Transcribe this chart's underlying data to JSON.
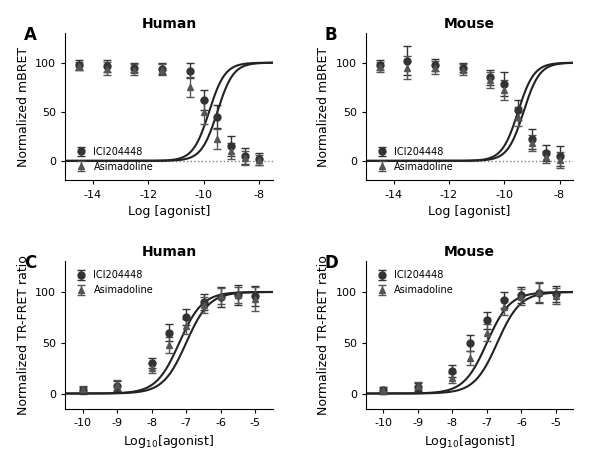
{
  "panel_A": {
    "title": "Human",
    "label": "A",
    "xlabel": "Log [agonist]",
    "ylabel": "Normalized mBRET",
    "xlim": [
      -15,
      -7.5
    ],
    "ylim": [
      -20,
      130
    ],
    "xticks": [
      -14,
      -12,
      -10,
      -8
    ],
    "yticks": [
      0,
      50,
      100
    ],
    "dotted_y": 0,
    "ICI_x": [
      -14.5,
      -13.5,
      -12.5,
      -11.5,
      -10.5,
      -10.0,
      -9.5,
      -9.0,
      -8.5,
      -8.0
    ],
    "ICI_y": [
      98,
      97,
      95,
      94,
      92,
      62,
      45,
      15,
      5,
      2
    ],
    "ICI_err": [
      5,
      6,
      5,
      6,
      8,
      10,
      12,
      10,
      8,
      6
    ],
    "Asim_x": [
      -14.5,
      -13.5,
      -12.5,
      -11.5,
      -10.5,
      -10.0,
      -9.5,
      -9.0,
      -8.5,
      -8.0
    ],
    "Asim_y": [
      97,
      94,
      93,
      93,
      75,
      50,
      22,
      10,
      3,
      1
    ],
    "Asim_err": [
      4,
      7,
      6,
      6,
      10,
      12,
      10,
      8,
      7,
      5
    ],
    "ICI_ec50": -9.5,
    "Asim_ec50": -9.8
  },
  "panel_B": {
    "title": "Mouse",
    "label": "B",
    "xlabel": "Log [agonist]",
    "ylabel": "Normalized mBRET",
    "xlim": [
      -15,
      -7.5
    ],
    "ylim": [
      -20,
      130
    ],
    "xticks": [
      -14,
      -12,
      -10,
      -8
    ],
    "yticks": [
      0,
      50,
      100
    ],
    "dotted_y": 0,
    "ICI_x": [
      -14.5,
      -13.5,
      -12.5,
      -11.5,
      -10.5,
      -10.0,
      -9.5,
      -9.0,
      -8.5,
      -8.0
    ],
    "ICI_y": [
      98,
      102,
      98,
      95,
      85,
      78,
      52,
      22,
      8,
      5
    ],
    "ICI_err": [
      5,
      15,
      6,
      5,
      8,
      12,
      10,
      10,
      8,
      10
    ],
    "Asim_x": [
      -14.5,
      -13.5,
      -12.5,
      -11.5,
      -10.5,
      -10.0,
      -9.5,
      -9.0,
      -8.5,
      -8.0
    ],
    "Asim_y": [
      96,
      95,
      95,
      93,
      82,
      72,
      45,
      18,
      4,
      1
    ],
    "Asim_err": [
      5,
      12,
      7,
      6,
      8,
      10,
      10,
      8,
      6,
      8
    ],
    "ICI_ec50": -9.3,
    "Asim_ec50": -9.5
  },
  "panel_C": {
    "title": "Human",
    "label": "C",
    "xlabel": "Log$_{10}$[agonist]",
    "ylabel": "Normalized TR-FRET ratio",
    "xlim": [
      -10.5,
      -4.5
    ],
    "ylim": [
      -15,
      130
    ],
    "xticks": [
      -10,
      -9,
      -8,
      -7,
      -6,
      -5
    ],
    "yticks": [
      0,
      50,
      100
    ],
    "ICI_x": [
      -10.0,
      -9.0,
      -8.0,
      -7.5,
      -7.0,
      -6.5,
      -6.0,
      -5.5,
      -5.0
    ],
    "ICI_y": [
      3,
      7,
      30,
      60,
      75,
      90,
      95,
      97,
      96
    ],
    "ICI_err": [
      3,
      5,
      5,
      8,
      8,
      8,
      10,
      10,
      10
    ],
    "Asim_x": [
      -10.0,
      -9.0,
      -8.0,
      -7.5,
      -7.0,
      -6.5,
      -6.0,
      -5.5,
      -5.0
    ],
    "Asim_y": [
      4,
      8,
      25,
      48,
      66,
      87,
      96,
      97,
      93
    ],
    "Asim_err": [
      3,
      5,
      5,
      8,
      7,
      8,
      8,
      8,
      12
    ],
    "ICI_ec50": -7.2,
    "Asim_ec50": -7.0
  },
  "panel_D": {
    "title": "Mouse",
    "label": "D",
    "xlabel": "Log$_{10}$[agonist]",
    "ylabel": "Normalized TR-FRET ratio",
    "xlim": [
      -10.5,
      -4.5
    ],
    "ylim": [
      -15,
      130
    ],
    "xticks": [
      -10,
      -9,
      -8,
      -7,
      -6,
      -5
    ],
    "yticks": [
      0,
      50,
      100
    ],
    "ICI_x": [
      -10.0,
      -9.0,
      -8.0,
      -7.5,
      -7.0,
      -6.5,
      -6.0,
      -5.5,
      -5.0
    ],
    "ICI_y": [
      3,
      6,
      22,
      50,
      72,
      92,
      97,
      99,
      98
    ],
    "ICI_err": [
      3,
      4,
      6,
      8,
      8,
      8,
      8,
      10,
      8
    ],
    "Asim_x": [
      -10.0,
      -9.0,
      -8.0,
      -7.5,
      -7.0,
      -6.5,
      -6.0,
      -5.5,
      -5.0
    ],
    "Asim_y": [
      3,
      7,
      15,
      35,
      60,
      85,
      95,
      100,
      96
    ],
    "Asim_err": [
      3,
      4,
      5,
      7,
      8,
      8,
      8,
      10,
      8
    ],
    "ICI_ec50": -7.0,
    "Asim_ec50": -6.7
  },
  "colors": {
    "ICI": "#333333",
    "Asim": "#555555",
    "line": "#222222"
  }
}
